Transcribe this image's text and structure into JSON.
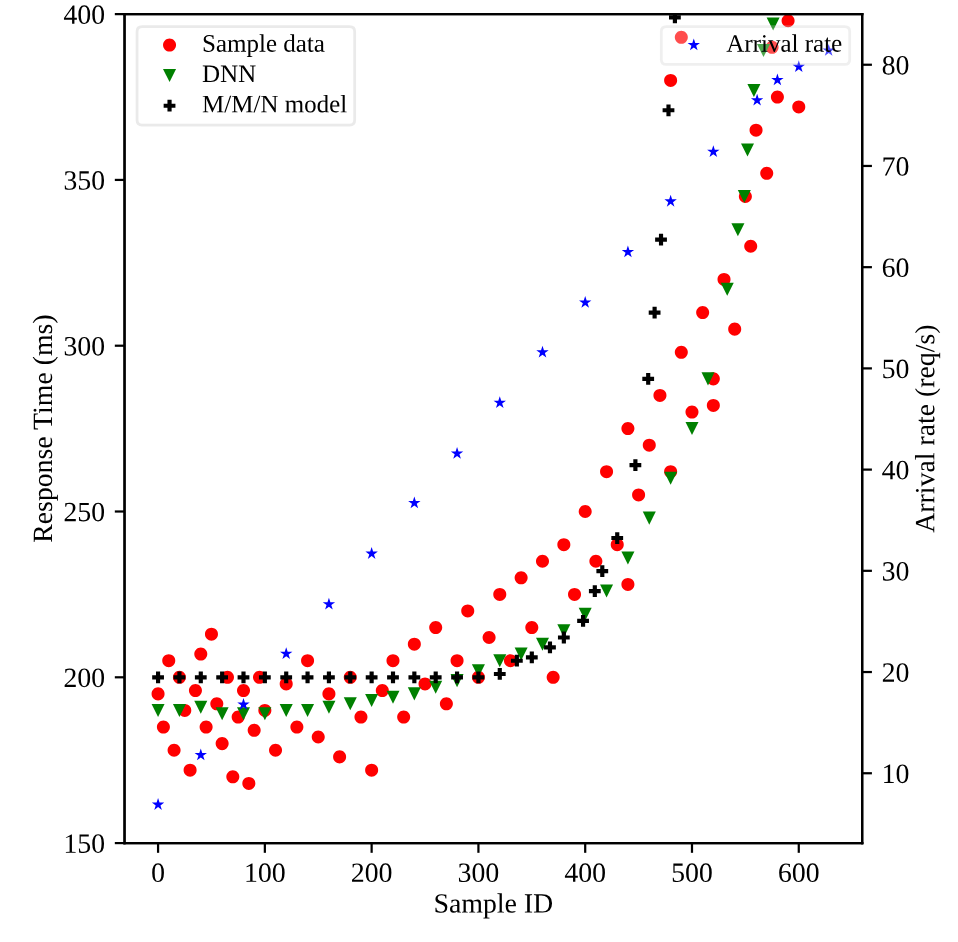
{
  "chart_data": {
    "type": "scatter",
    "xlabel": "Sample ID",
    "ylabel": "Response Time (ms)",
    "y2label": "Arrival rate (req/s)",
    "xlim": [
      -31.4,
      659.4
    ],
    "xticks": [
      0,
      100,
      200,
      300,
      400,
      500,
      600
    ],
    "ylim": [
      150,
      400
    ],
    "yticks": [
      150,
      200,
      250,
      300,
      350,
      400
    ],
    "y2lim": [
      3.1,
      85.0
    ],
    "y2ticks": [
      10,
      20,
      30,
      40,
      50,
      60,
      70,
      80
    ],
    "legend": "top left",
    "grid": false,
    "series": [
      {
        "name": "Sample data",
        "color": "#ff0000",
        "marker": "circle",
        "x": [
          0,
          5,
          10,
          15,
          20,
          25,
          30,
          35,
          40,
          45,
          50,
          55,
          60,
          65,
          70,
          75,
          80,
          85,
          90,
          95,
          100,
          110,
          120,
          130,
          140,
          150,
          160,
          170,
          180,
          190,
          200,
          210,
          220,
          230,
          240,
          250,
          260,
          270,
          280,
          290,
          300,
          310,
          320,
          330,
          340,
          350,
          360,
          370,
          380,
          390,
          400,
          410,
          420,
          430,
          440,
          450,
          460,
          470,
          480,
          490,
          500,
          510,
          520,
          530,
          540,
          550,
          555,
          560,
          570,
          575,
          580,
          590,
          600,
          480,
          490,
          520,
          440
        ],
        "values": [
          195,
          185,
          205,
          178,
          200,
          190,
          172,
          196,
          207,
          185,
          213,
          192,
          180,
          200,
          170,
          188,
          196,
          168,
          184,
          200,
          190,
          178,
          198,
          185,
          205,
          182,
          195,
          176,
          200,
          188,
          172,
          196,
          205,
          188,
          210,
          198,
          215,
          192,
          205,
          220,
          200,
          212,
          225,
          205,
          230,
          215,
          235,
          200,
          240,
          225,
          250,
          235,
          262,
          240,
          275,
          255,
          270,
          285,
          262,
          298,
          280,
          310,
          290,
          320,
          305,
          345,
          330,
          365,
          352,
          390,
          375,
          398,
          372,
          380,
          393,
          282,
          228
        ]
      },
      {
        "name": "DNN",
        "color": "#008000",
        "marker": "triangle",
        "x": [
          0,
          20,
          40,
          60,
          80,
          100,
          120,
          140,
          160,
          180,
          200,
          220,
          240,
          260,
          280,
          300,
          320,
          340,
          360,
          380,
          400,
          420,
          440,
          460,
          480,
          500,
          515,
          533,
          543,
          549,
          552,
          558,
          567,
          576
        ],
        "values": [
          190,
          190,
          191,
          189,
          189,
          189,
          190,
          190,
          191,
          192,
          193,
          194,
          195,
          197,
          199,
          202,
          205,
          207,
          210,
          214,
          219,
          226,
          236,
          248,
          260,
          275,
          290,
          317,
          335,
          345,
          359,
          377,
          389,
          397
        ]
      },
      {
        "name": "M/M/N model",
        "color": "#000000",
        "marker": "cross",
        "x": [
          0,
          20,
          40,
          60,
          80,
          100,
          120,
          140,
          160,
          180,
          200,
          220,
          240,
          260,
          280,
          300,
          320,
          336,
          350,
          367,
          380,
          398,
          409,
          416,
          430,
          447,
          459,
          465,
          471,
          478,
          484
        ],
        "values": [
          200,
          200,
          200,
          200,
          200,
          200,
          200,
          200,
          200,
          200,
          200,
          200,
          200,
          200,
          200,
          200,
          201,
          205,
          206,
          209,
          212,
          217,
          226,
          232,
          242,
          264,
          290,
          310,
          332,
          371,
          399
        ]
      },
      {
        "name": "Arrival rate",
        "color": "#0000ff",
        "marker": "star",
        "axis": "y2",
        "x": [
          0,
          40,
          80,
          120,
          160,
          200,
          240,
          280,
          320,
          360,
          400,
          440,
          480,
          520,
          561,
          580,
          600,
          628
        ],
        "values": [
          6.9,
          11.8,
          16.8,
          21.8,
          26.7,
          31.7,
          36.7,
          41.6,
          46.6,
          51.6,
          56.5,
          61.5,
          66.5,
          71.4,
          76.5,
          78.5,
          79.8,
          81.4
        ]
      }
    ]
  }
}
